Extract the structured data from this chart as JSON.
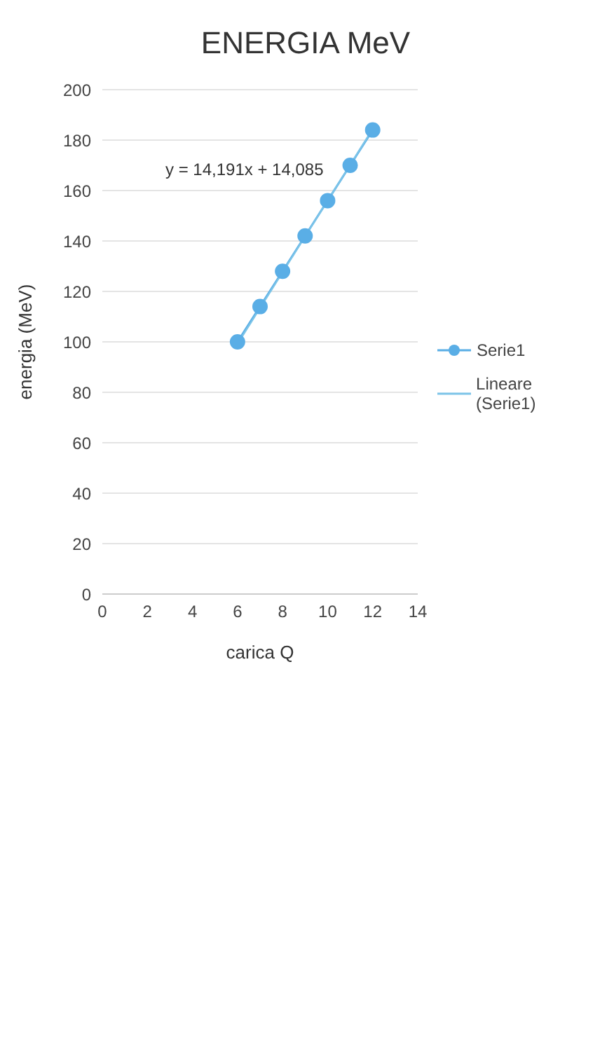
{
  "chart_data": {
    "type": "line",
    "title": "ENERGIA MeV",
    "xlabel": "carica Q",
    "ylabel": "energia (MeV)",
    "x": [
      6,
      7,
      8,
      9,
      10,
      11,
      12
    ],
    "series": [
      {
        "name": "Serie1",
        "color": "#5aaee6",
        "values": [
          100,
          114,
          128,
          142,
          156,
          170,
          184
        ],
        "marker": "circle"
      },
      {
        "name": "Lineare (Serie1)",
        "color": "#7cc4e8",
        "type": "line",
        "x": [
          6,
          12
        ],
        "values": [
          99.2,
          184.4
        ],
        "marker": "none"
      }
    ],
    "xlim": [
      0,
      14
    ],
    "xticks": [
      0,
      2,
      4,
      6,
      8,
      10,
      12,
      14
    ],
    "ylim": [
      0,
      200
    ],
    "yticks": [
      0,
      20,
      40,
      60,
      80,
      100,
      120,
      140,
      160,
      180,
      200
    ],
    "grid": "y",
    "legend": "right",
    "annotations": [
      "y = 14,191x + 14,085"
    ]
  }
}
